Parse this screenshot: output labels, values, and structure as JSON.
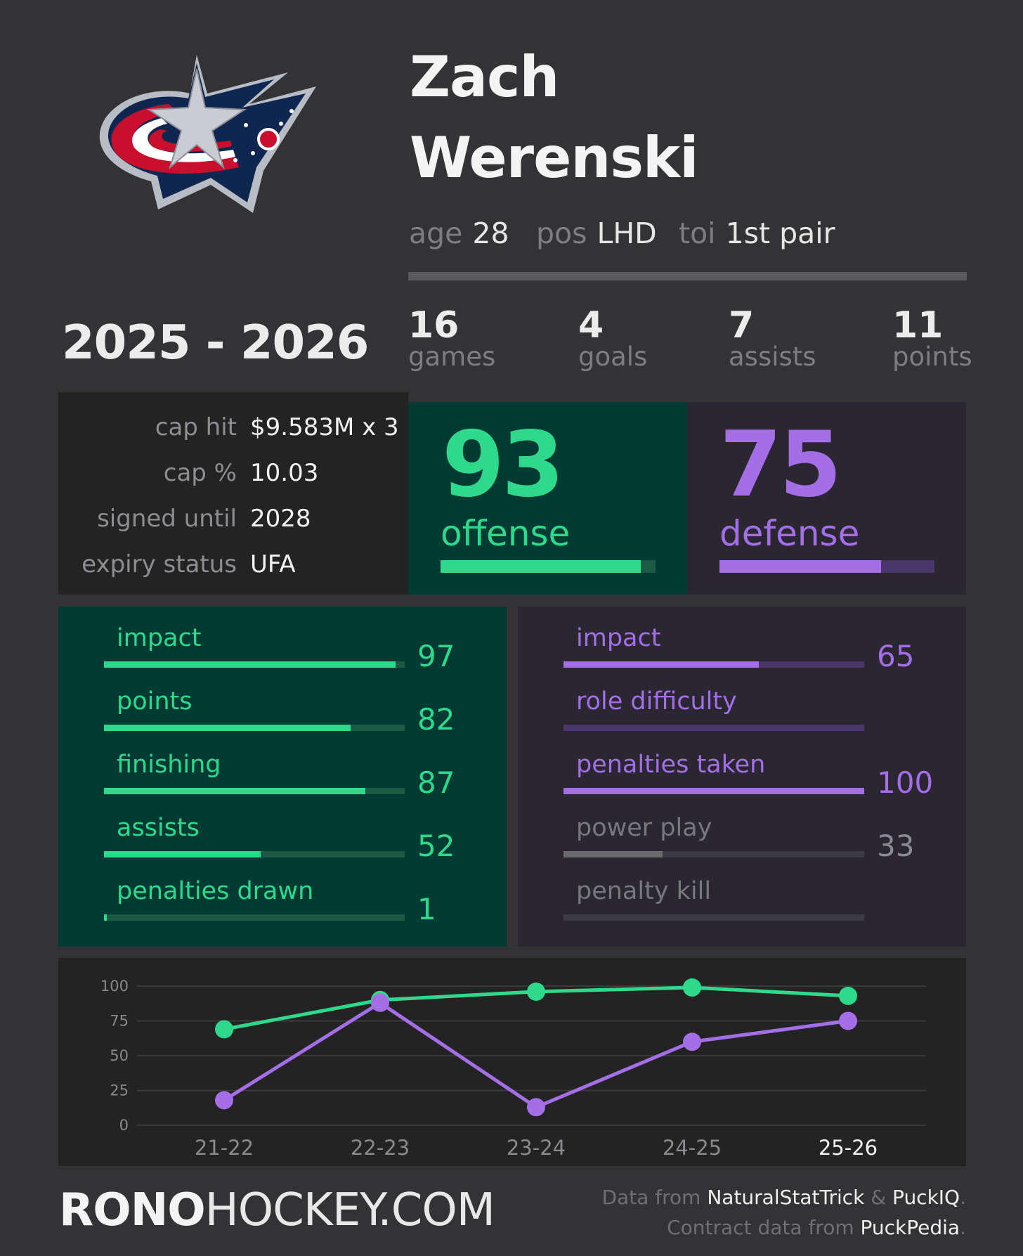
{
  "player": {
    "first_name": "Zach",
    "last_name": "Werenski"
  },
  "bio": [
    {
      "key": "age",
      "value": "28"
    },
    {
      "key": "pos",
      "value": "LHD"
    },
    {
      "key": "toi",
      "value": "1st pair"
    }
  ],
  "season": "2025 - 2026",
  "stats": [
    {
      "value": "16",
      "label": "games"
    },
    {
      "value": "4",
      "label": "goals"
    },
    {
      "value": "7",
      "label": "assists"
    },
    {
      "value": "11",
      "label": "points"
    }
  ],
  "contract": [
    {
      "key": "cap hit",
      "value": "$9.583M x 3"
    },
    {
      "key": "cap %",
      "value": "10.03"
    },
    {
      "key": "signed until",
      "value": "2028"
    },
    {
      "key": "expiry status",
      "value": "UFA"
    }
  ],
  "offense": {
    "value": "93",
    "label": "offense",
    "percent": 93
  },
  "defense": {
    "value": "75",
    "label": "defense",
    "percent": 75
  },
  "offense_metrics": [
    {
      "label": "impact",
      "value": "97",
      "percent": 97
    },
    {
      "label": "points",
      "value": "82",
      "percent": 82
    },
    {
      "label": "finishing",
      "value": "87",
      "percent": 87
    },
    {
      "label": "assists",
      "value": "52",
      "percent": 52
    },
    {
      "label": "penalties drawn",
      "value": "1",
      "percent": 1
    }
  ],
  "defense_metrics": [
    {
      "label": "impact",
      "value": "65",
      "percent": 65,
      "style": "purple"
    },
    {
      "label": "role difficulty",
      "value": "",
      "percent": 0,
      "style": "purple"
    },
    {
      "label": "penalties taken",
      "value": "100",
      "percent": 100,
      "style": "purple"
    },
    {
      "label": "power play",
      "value": "33",
      "percent": 33,
      "style": "gray"
    },
    {
      "label": "penalty kill",
      "value": "",
      "percent": 0,
      "style": "gray"
    }
  ],
  "chart_data": {
    "type": "line",
    "categories": [
      "21-22",
      "22-23",
      "23-24",
      "24-25",
      "25-26"
    ],
    "yticks": [
      "100",
      "75",
      "50",
      "25",
      "0"
    ],
    "ylim": [
      0,
      100
    ],
    "grid": true,
    "series": [
      {
        "color": "#2ed98c",
        "values": [
          69,
          90,
          96,
          99,
          93
        ]
      },
      {
        "color": "#a46ee6",
        "values": [
          18,
          88,
          13,
          60,
          75
        ]
      }
    ]
  },
  "footer": {
    "brand_bold": "RONO",
    "brand_regular": "HOCKEY.COM",
    "credit1_prefix": "Data from ",
    "credit1_src1": "NaturalStatTrick",
    "credit1_amp": " & ",
    "credit1_src2": "PuckIQ",
    "credit1_end": ".",
    "credit2_prefix": "Contract data from ",
    "credit2_src": "PuckPedia",
    "credit2_end": "."
  },
  "colors": {
    "green": "#2ed98c",
    "purple": "#a46ee6",
    "gray": "#6b6b6f"
  }
}
